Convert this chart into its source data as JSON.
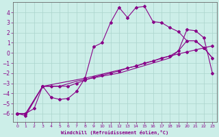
{
  "xlabel": "Windchill (Refroidissement éolien,°C)",
  "bg_color": "#cceee8",
  "line_color": "#880088",
  "xlim": [
    -0.5,
    23.5
  ],
  "ylim": [
    -6.8,
    5.0
  ],
  "yticks": [
    -6,
    -5,
    -4,
    -3,
    -2,
    -1,
    0,
    1,
    2,
    3,
    4
  ],
  "xticks": [
    0,
    1,
    2,
    3,
    4,
    5,
    6,
    7,
    8,
    9,
    10,
    11,
    12,
    13,
    14,
    15,
    16,
    17,
    18,
    19,
    20,
    21,
    22,
    23
  ],
  "series1_x": [
    0,
    1,
    3,
    4,
    5,
    6,
    7,
    8,
    9,
    10,
    11,
    12,
    13,
    14,
    15,
    16,
    17,
    18,
    19,
    20,
    21,
    22,
    23
  ],
  "series1_y": [
    -6.0,
    -6.2,
    -3.3,
    -4.4,
    -4.6,
    -4.5,
    -3.8,
    -2.5,
    0.6,
    1.0,
    3.0,
    4.5,
    3.5,
    4.5,
    4.6,
    3.1,
    3.0,
    2.5,
    2.1,
    1.2,
    1.2,
    0.5,
    -0.5
  ],
  "series2_x": [
    0,
    1,
    2,
    3,
    4,
    5,
    6,
    7,
    8,
    9,
    10,
    11,
    12,
    13,
    14,
    15,
    16,
    17,
    18,
    19,
    20,
    21,
    22,
    23
  ],
  "series2_y": [
    -6.0,
    -6.0,
    -5.5,
    -3.3,
    -3.3,
    -3.3,
    -3.3,
    -3.0,
    -2.7,
    -2.4,
    -2.2,
    -2.0,
    -1.8,
    -1.5,
    -1.3,
    -1.0,
    -0.8,
    -0.5,
    -0.3,
    -0.1,
    0.1,
    0.3,
    0.5,
    0.7
  ],
  "series3_x": [
    0,
    1,
    3,
    5,
    7,
    10,
    12,
    14,
    16,
    18,
    19,
    20,
    21,
    22,
    23
  ],
  "series3_y": [
    -6.0,
    -6.0,
    -3.3,
    -3.3,
    -2.8,
    -2.3,
    -2.0,
    -1.5,
    -1.0,
    -0.5,
    0.2,
    1.2,
    1.2,
    0.5,
    -0.5
  ],
  "series4_x": [
    0,
    1,
    3,
    8,
    14,
    18,
    19,
    20,
    21,
    22,
    23
  ],
  "series4_y": [
    -6.0,
    -6.0,
    -3.3,
    -2.5,
    -1.3,
    -0.3,
    0.2,
    2.3,
    2.2,
    1.5,
    -2.0
  ]
}
